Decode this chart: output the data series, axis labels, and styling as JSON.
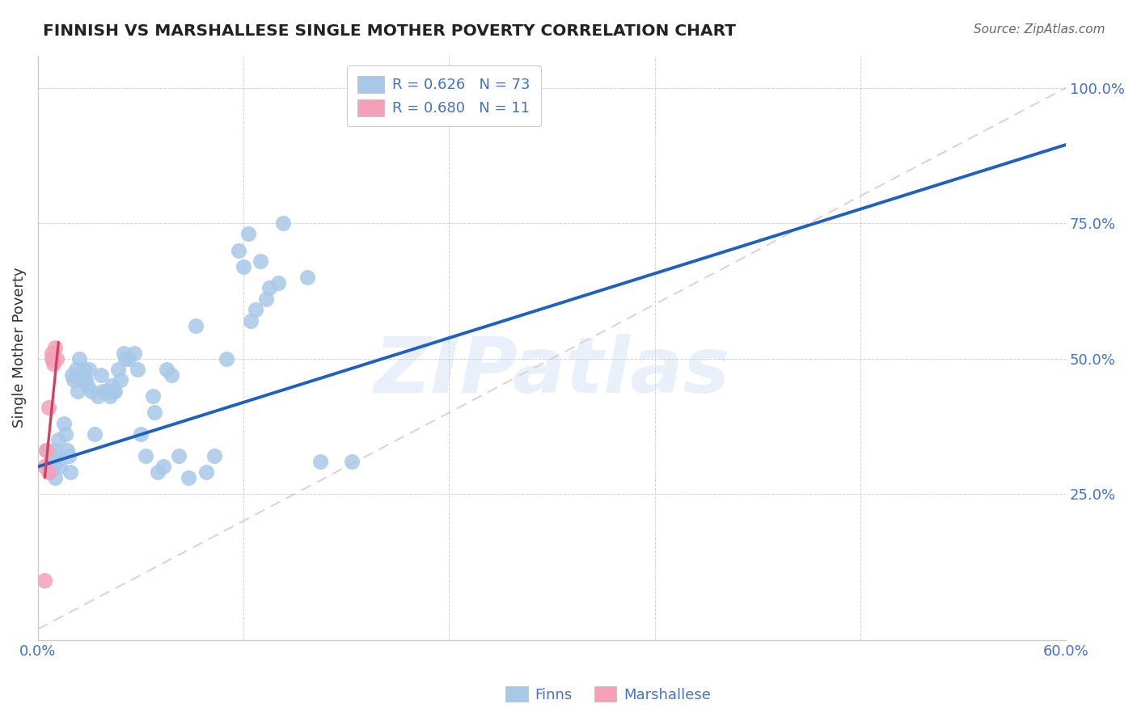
{
  "title": "FINNISH VS MARSHALLESE SINGLE MOTHER POVERTY CORRELATION CHART",
  "source": "Source: ZipAtlas.com",
  "ylabel": "Single Mother Poverty",
  "xlim": [
    0.0,
    0.6
  ],
  "ylim": [
    -0.02,
    1.06
  ],
  "xtick_positions": [
    0.0,
    0.12,
    0.24,
    0.36,
    0.48,
    0.6
  ],
  "xticklabels": [
    "0.0%",
    "",
    "",
    "",
    "",
    "60.0%"
  ],
  "ytick_positions": [
    0.25,
    0.5,
    0.75,
    1.0
  ],
  "yticklabels": [
    "25.0%",
    "50.0%",
    "75.0%",
    "100.0%"
  ],
  "legend_r_finn": "0.626",
  "legend_n_finn": "73",
  "legend_r_marsh": "0.680",
  "legend_n_marsh": "11",
  "finn_color": "#a8c8e8",
  "marsh_color": "#f4a0b8",
  "trend_finn_color": "#2060c0",
  "trend_marsh_color": "#d04060",
  "tick_color": "#4472c4",
  "watermark": "ZIPatlas",
  "finn_points": [
    [
      0.005,
      0.33
    ],
    [
      0.006,
      0.3
    ],
    [
      0.007,
      0.31
    ],
    [
      0.007,
      0.29
    ],
    [
      0.008,
      0.31
    ],
    [
      0.009,
      0.3
    ],
    [
      0.009,
      0.32
    ],
    [
      0.01,
      0.28
    ],
    [
      0.01,
      0.33
    ],
    [
      0.011,
      0.31
    ],
    [
      0.012,
      0.35
    ],
    [
      0.013,
      0.3
    ],
    [
      0.015,
      0.38
    ],
    [
      0.016,
      0.36
    ],
    [
      0.017,
      0.33
    ],
    [
      0.018,
      0.32
    ],
    [
      0.019,
      0.29
    ],
    [
      0.02,
      0.47
    ],
    [
      0.021,
      0.46
    ],
    [
      0.022,
      0.48
    ],
    [
      0.023,
      0.44
    ],
    [
      0.024,
      0.5
    ],
    [
      0.025,
      0.46
    ],
    [
      0.026,
      0.47
    ],
    [
      0.027,
      0.48
    ],
    [
      0.028,
      0.46
    ],
    [
      0.029,
      0.45
    ],
    [
      0.03,
      0.48
    ],
    [
      0.031,
      0.44
    ],
    [
      0.033,
      0.36
    ],
    [
      0.035,
      0.43
    ],
    [
      0.037,
      0.47
    ],
    [
      0.038,
      0.44
    ],
    [
      0.04,
      0.44
    ],
    [
      0.042,
      0.43
    ],
    [
      0.043,
      0.45
    ],
    [
      0.044,
      0.44
    ],
    [
      0.045,
      0.44
    ],
    [
      0.047,
      0.48
    ],
    [
      0.048,
      0.46
    ],
    [
      0.05,
      0.51
    ],
    [
      0.051,
      0.5
    ],
    [
      0.053,
      0.5
    ],
    [
      0.056,
      0.51
    ],
    [
      0.058,
      0.48
    ],
    [
      0.06,
      0.36
    ],
    [
      0.063,
      0.32
    ],
    [
      0.067,
      0.43
    ],
    [
      0.068,
      0.4
    ],
    [
      0.07,
      0.29
    ],
    [
      0.073,
      0.3
    ],
    [
      0.075,
      0.48
    ],
    [
      0.078,
      0.47
    ],
    [
      0.082,
      0.32
    ],
    [
      0.088,
      0.28
    ],
    [
      0.092,
      0.56
    ],
    [
      0.098,
      0.29
    ],
    [
      0.103,
      0.32
    ],
    [
      0.11,
      0.5
    ],
    [
      0.117,
      0.7
    ],
    [
      0.12,
      0.67
    ],
    [
      0.123,
      0.73
    ],
    [
      0.124,
      0.57
    ],
    [
      0.127,
      0.59
    ],
    [
      0.13,
      0.68
    ],
    [
      0.133,
      0.61
    ],
    [
      0.135,
      0.63
    ],
    [
      0.14,
      0.64
    ],
    [
      0.143,
      0.75
    ],
    [
      0.157,
      0.65
    ],
    [
      0.165,
      0.31
    ],
    [
      0.183,
      0.31
    ],
    [
      0.193,
      0.98
    ]
  ],
  "marsh_points": [
    [
      0.004,
      0.3
    ],
    [
      0.005,
      0.33
    ],
    [
      0.006,
      0.41
    ],
    [
      0.006,
      0.29
    ],
    [
      0.008,
      0.5
    ],
    [
      0.008,
      0.51
    ],
    [
      0.009,
      0.5
    ],
    [
      0.009,
      0.49
    ],
    [
      0.01,
      0.52
    ],
    [
      0.011,
      0.5
    ],
    [
      0.004,
      0.09
    ]
  ],
  "finn_trend_x": [
    0.0,
    0.6
  ],
  "finn_trend_y": [
    0.3,
    0.895
  ],
  "marsh_trend_x": [
    0.004,
    0.012
  ],
  "marsh_trend_y": [
    0.28,
    0.53
  ],
  "diag_line_x": [
    0.0,
    0.6
  ],
  "diag_line_y": [
    0.0,
    1.0
  ]
}
